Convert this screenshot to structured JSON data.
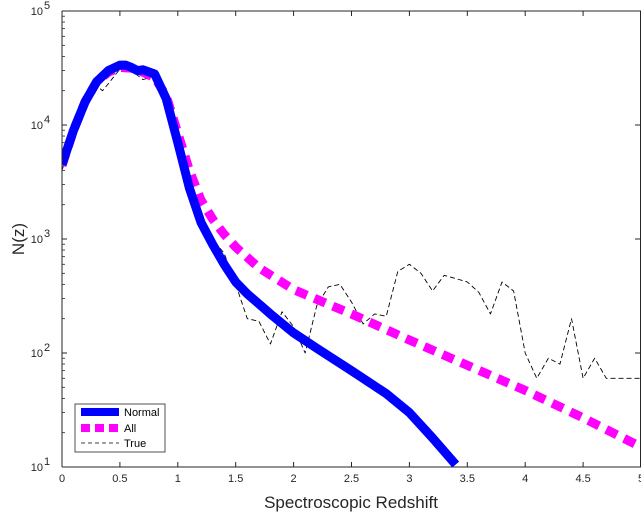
{
  "chart_data": {
    "type": "line",
    "title": "",
    "xlabel": "Spectroscopic Redshift",
    "ylabel": "N(z)",
    "xlim": [
      0,
      5
    ],
    "ylim": [
      10,
      100000
    ],
    "yscale": "log",
    "grid": false,
    "legend_position": "bottom-left",
    "x_ticks": [
      "0",
      "0.5",
      "1",
      "1.5",
      "2",
      "2.5",
      "3",
      "3.5",
      "4",
      "4.5",
      "5"
    ],
    "x_tick_values": [
      0,
      0.5,
      1,
      1.5,
      2,
      2.5,
      3,
      3.5,
      4,
      4.5,
      5
    ],
    "y_tick_values": [
      10,
      100,
      1000,
      10000,
      100000
    ],
    "y_ticks": [
      {
        "base": "10",
        "exp": "1"
      },
      {
        "base": "10",
        "exp": "2"
      },
      {
        "base": "10",
        "exp": "3"
      },
      {
        "base": "10",
        "exp": "4"
      },
      {
        "base": "10",
        "exp": "5"
      }
    ],
    "series": [
      {
        "name": "Normal",
        "color": "#0000ff",
        "style": "solid-thick",
        "x": [
          0,
          0.1,
          0.2,
          0.3,
          0.4,
          0.5,
          0.55,
          0.6,
          0.65,
          0.7,
          0.8,
          0.9,
          1.0,
          1.1,
          1.2,
          1.3,
          1.4,
          1.5,
          1.6,
          1.8,
          2.0,
          2.2,
          2.5,
          2.8,
          3.0,
          3.2,
          3.4
        ],
        "y": [
          4500,
          9000,
          16000,
          24000,
          30000,
          33500,
          33500,
          32000,
          30000,
          30500,
          28000,
          17000,
          7000,
          2800,
          1400,
          900,
          600,
          420,
          330,
          220,
          150,
          110,
          70,
          44,
          30,
          18,
          10.5
        ]
      },
      {
        "name": "All",
        "color": "#ff00ff",
        "style": "dashed-thick",
        "x": [
          0,
          0.1,
          0.2,
          0.3,
          0.4,
          0.5,
          0.6,
          0.7,
          0.8,
          0.9,
          1.0,
          1.1,
          1.2,
          1.3,
          1.4,
          1.5,
          1.7,
          2.0,
          2.5,
          3.0,
          3.5,
          4.0,
          4.5,
          5.0
        ],
        "y": [
          4400,
          9000,
          16000,
          24000,
          29000,
          32000,
          31500,
          29000,
          26000,
          18000,
          8500,
          4000,
          2200,
          1500,
          1100,
          850,
          560,
          360,
          220,
          130,
          78,
          47,
          27,
          15
        ]
      },
      {
        "name": "True",
        "color": "#000000",
        "style": "dashed-thin",
        "x": [
          0,
          0.1,
          0.2,
          0.3,
          0.35,
          0.4,
          0.5,
          0.6,
          0.7,
          0.8,
          0.9,
          1.0,
          1.1,
          1.2,
          1.3,
          1.4,
          1.5,
          1.6,
          1.7,
          1.8,
          1.9,
          2.0,
          2.1,
          2.2,
          2.3,
          2.4,
          2.5,
          2.6,
          2.7,
          2.8,
          2.9,
          3.0,
          3.1,
          3.2,
          3.3,
          3.4,
          3.5,
          3.6,
          3.7,
          3.8,
          3.9,
          4.0,
          4.1,
          4.2,
          4.3,
          4.4,
          4.5,
          4.6,
          4.7,
          4.8,
          4.9,
          5.0
        ],
        "y": [
          4000,
          8500,
          15000,
          22000,
          20000,
          23000,
          31000,
          30000,
          25000,
          27000,
          18000,
          7000,
          2500,
          1600,
          1000,
          750,
          400,
          200,
          190,
          120,
          230,
          170,
          100,
          260,
          380,
          400,
          280,
          180,
          220,
          210,
          520,
          600,
          500,
          350,
          480,
          450,
          420,
          340,
          220,
          420,
          350,
          100,
          60,
          90,
          80,
          200,
          60,
          90,
          60,
          60,
          60,
          60
        ]
      }
    ]
  }
}
